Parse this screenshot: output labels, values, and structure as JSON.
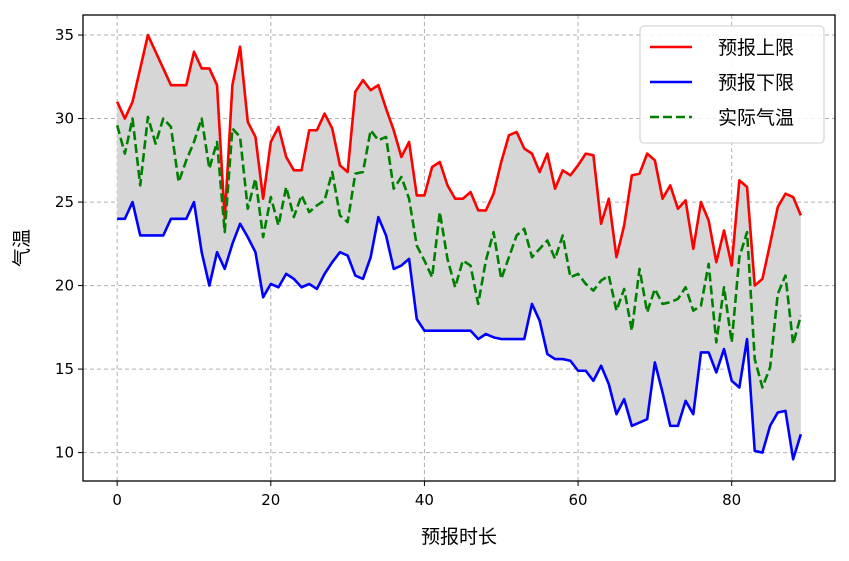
{
  "chart_data": {
    "type": "line",
    "xlabel": "预报时长",
    "ylabel": "气温",
    "xlim": [
      -4.45,
      93.45
    ],
    "ylim": [
      8.3,
      36.2
    ],
    "x_ticks": [
      0,
      20,
      40,
      60,
      80
    ],
    "y_ticks": [
      10,
      15,
      20,
      25,
      30,
      35
    ],
    "grid": true,
    "grid_style": "dashed",
    "legend_position": "top-right",
    "fill_between": {
      "from_series": "预报下限",
      "to_series": "预报上限",
      "color": "#d6d6d6"
    },
    "x": [
      0,
      1,
      2,
      3,
      4,
      5,
      6,
      7,
      8,
      9,
      10,
      11,
      12,
      13,
      14,
      15,
      16,
      17,
      18,
      19,
      20,
      21,
      22,
      23,
      24,
      25,
      26,
      27,
      28,
      29,
      30,
      31,
      32,
      33,
      34,
      35,
      36,
      37,
      38,
      39,
      40,
      41,
      42,
      43,
      44,
      45,
      46,
      47,
      48,
      49,
      50,
      51,
      52,
      53,
      54,
      55,
      56,
      57,
      58,
      59,
      60,
      61,
      62,
      63,
      64,
      65,
      66,
      67,
      68,
      69,
      70,
      71,
      72,
      73,
      74,
      75,
      76,
      77,
      78,
      79,
      80,
      81,
      82,
      83,
      84,
      85,
      86,
      87,
      88,
      89
    ],
    "series": [
      {
        "name": "预报上限",
        "color": "#ff0000",
        "style": "solid",
        "values": [
          31.0,
          30.0,
          31.0,
          33.0,
          35.0,
          34.0,
          33.0,
          32.0,
          32.0,
          32.0,
          34.0,
          33.0,
          33.0,
          32.0,
          24.0,
          32.0,
          34.3,
          29.8,
          28.9,
          25.2,
          28.6,
          29.5,
          27.7,
          26.9,
          26.9,
          29.3,
          29.3,
          30.3,
          29.4,
          27.2,
          26.8,
          31.6,
          32.3,
          31.7,
          32.0,
          30.6,
          29.3,
          27.7,
          28.6,
          25.4,
          25.4,
          27.1,
          27.4,
          26.0,
          25.2,
          25.2,
          25.6,
          24.5,
          24.5,
          25.5,
          27.4,
          29.0,
          29.2,
          28.2,
          27.9,
          26.8,
          27.9,
          25.8,
          26.9,
          26.6,
          27.2,
          27.9,
          27.8,
          23.7,
          25.2,
          21.7,
          23.6,
          26.6,
          26.7,
          27.9,
          27.5,
          25.2,
          26.0,
          24.6,
          25.1,
          22.2,
          25.0,
          23.9,
          21.4,
          23.3,
          21.2,
          26.3,
          25.9,
          20.0,
          20.4,
          22.5,
          24.7,
          25.5,
          25.3,
          24.2
        ]
      },
      {
        "name": "预报下限",
        "color": "#0000ff",
        "style": "solid",
        "values": [
          24.0,
          24.0,
          25.0,
          23.0,
          23.0,
          23.0,
          23.0,
          24.0,
          24.0,
          24.0,
          25.0,
          22.0,
          20.0,
          22.0,
          21.0,
          22.5,
          23.7,
          22.9,
          22.0,
          19.3,
          20.1,
          19.9,
          20.7,
          20.4,
          19.9,
          20.1,
          19.8,
          20.7,
          21.4,
          22.0,
          21.8,
          20.6,
          20.4,
          21.7,
          24.1,
          23.0,
          21.0,
          21.2,
          21.6,
          18.0,
          17.3,
          17.3,
          17.3,
          17.3,
          17.3,
          17.3,
          17.3,
          16.8,
          17.1,
          16.9,
          16.8,
          16.8,
          16.8,
          16.8,
          18.9,
          17.9,
          15.9,
          15.6,
          15.6,
          15.5,
          14.9,
          14.9,
          14.3,
          15.2,
          14.1,
          12.3,
          13.2,
          11.6,
          11.8,
          12.0,
          15.4,
          13.6,
          11.6,
          11.6,
          13.1,
          12.3,
          16.0,
          16.0,
          14.8,
          16.2,
          14.3,
          13.9,
          16.8,
          10.1,
          10.0,
          11.6,
          12.4,
          12.5,
          9.6,
          11.1
        ]
      },
      {
        "name": "实际气温",
        "color": "#008000",
        "style": "dashed",
        "values": [
          29.6,
          27.9,
          30.0,
          26.0,
          30.1,
          28.5,
          30.0,
          29.5,
          26.2,
          27.5,
          28.6,
          30.0,
          27.0,
          28.6,
          23.2,
          29.4,
          28.9,
          24.6,
          26.4,
          22.9,
          25.3,
          23.6,
          25.9,
          24.1,
          25.4,
          24.4,
          24.8,
          25.1,
          26.8,
          24.2,
          23.8,
          26.7,
          26.8,
          29.3,
          28.7,
          28.9,
          25.8,
          26.5,
          25.2,
          22.4,
          21.5,
          20.5,
          24.4,
          21.6,
          19.9,
          21.5,
          21.2,
          18.9,
          21.5,
          23.2,
          20.4,
          21.7,
          23.0,
          23.4,
          21.7,
          22.2,
          22.7,
          21.6,
          23.0,
          20.5,
          20.7,
          20.1,
          19.7,
          20.3,
          20.6,
          18.5,
          19.8,
          17.3,
          21.0,
          18.4,
          19.8,
          18.9,
          19.0,
          19.2,
          19.9,
          18.5,
          18.8,
          21.3,
          16.6,
          19.9,
          16.6,
          21.7,
          23.2,
          15.6,
          13.9,
          15.1,
          19.5,
          20.6,
          16.5,
          18.2
        ]
      }
    ]
  }
}
